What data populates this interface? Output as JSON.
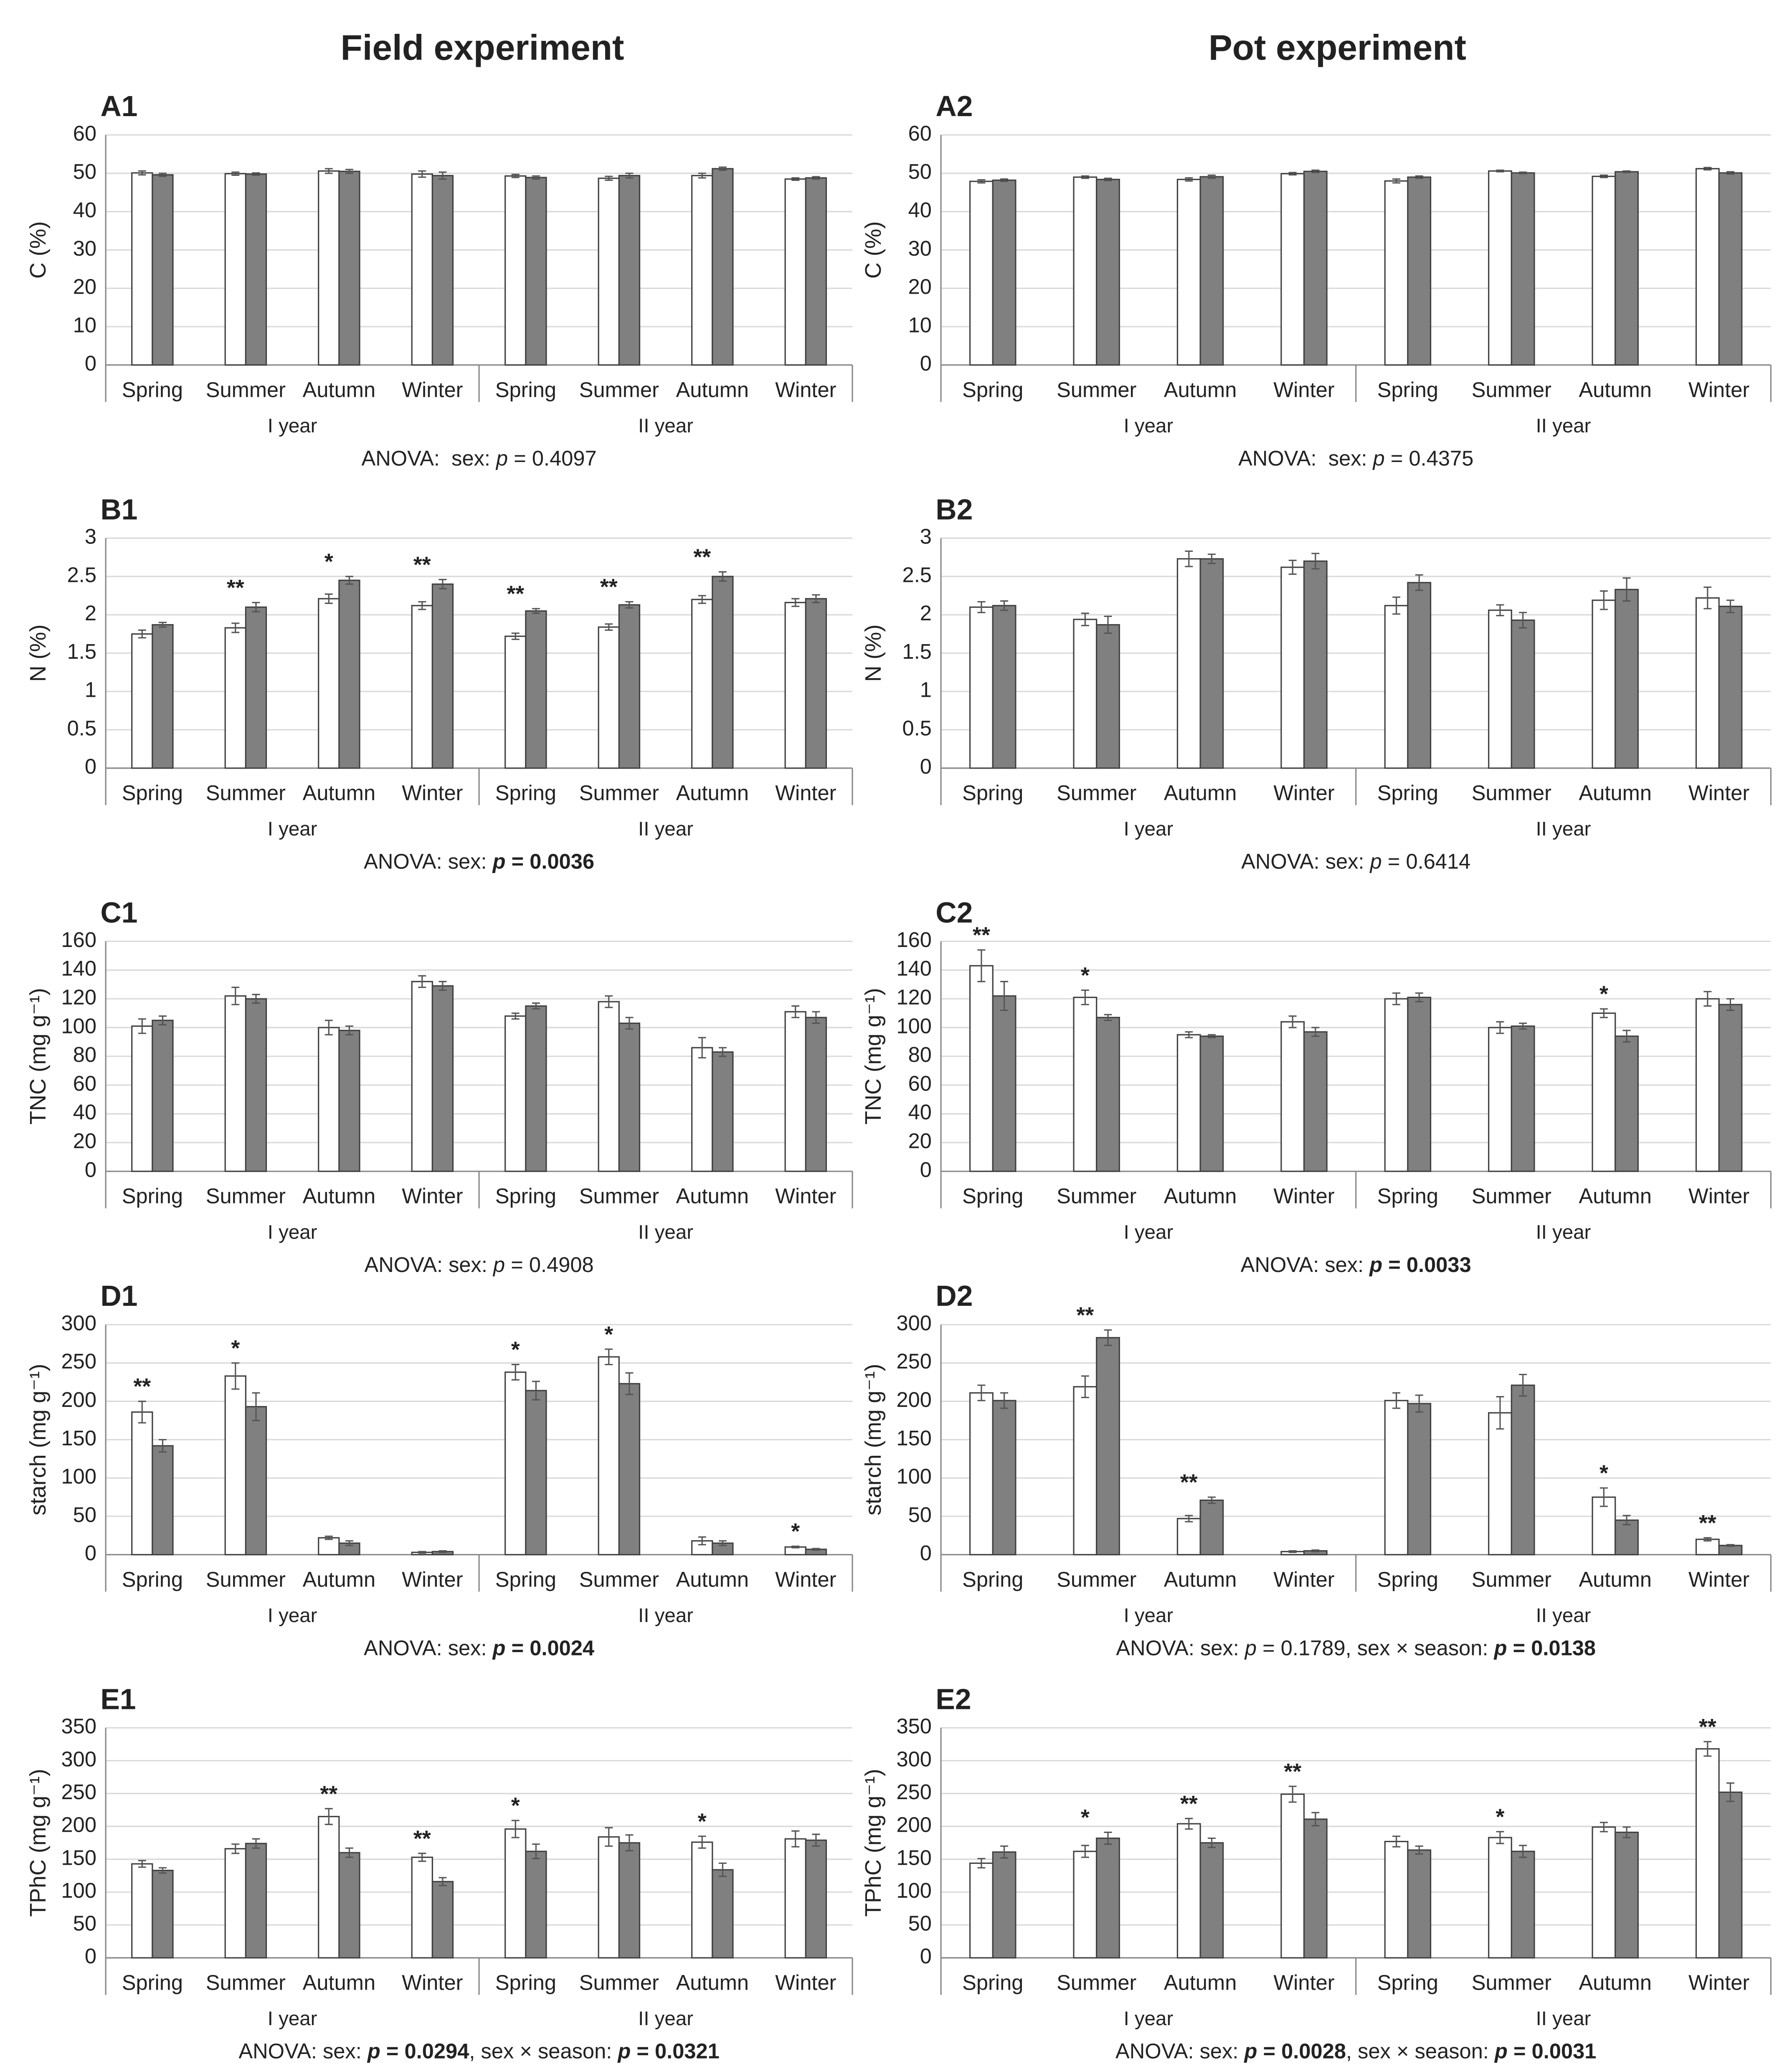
{
  "columns": [
    "Field experiment",
    "Pot experiment"
  ],
  "chart_data": [
    {
      "type": "bar",
      "label": "A1",
      "ylabel": "C (%)",
      "categories": [
        "Spring",
        "Summer",
        "Autumn",
        "Winter",
        "Spring",
        "Summer",
        "Autumn",
        "Winter"
      ],
      "groups": [
        "I year",
        "II year"
      ],
      "series": [
        {
          "color": "#ffffff",
          "values": [
            50.1,
            49.9,
            50.6,
            49.8,
            49.3,
            48.7,
            49.4,
            48.5
          ],
          "errors": [
            0.5,
            0.4,
            0.6,
            0.8,
            0.4,
            0.5,
            0.6,
            0.3
          ]
        },
        {
          "color": "#808080",
          "values": [
            49.6,
            49.8,
            50.5,
            49.4,
            48.9,
            49.4,
            51.2,
            48.8
          ],
          "errors": [
            0.4,
            0.3,
            0.5,
            0.9,
            0.4,
            0.6,
            0.4,
            0.3
          ]
        }
      ],
      "significance": [
        null,
        null,
        null,
        null,
        null,
        null,
        null,
        null
      ],
      "ylim": [
        0,
        60
      ],
      "yticks": [
        0,
        10,
        20,
        30,
        40,
        50,
        60
      ],
      "anova": [
        {
          "text": "ANOVA:  sex: "
        },
        {
          "text": "p",
          "italic": true
        },
        {
          "text": " = 0.4097"
        }
      ]
    },
    {
      "type": "bar",
      "label": "A2",
      "ylabel": "C (%)",
      "categories": [
        "Spring",
        "Summer",
        "Autumn",
        "Winter",
        "Spring",
        "Summer",
        "Autumn",
        "Winter"
      ],
      "groups": [
        "I year",
        "II year"
      ],
      "series": [
        {
          "color": "#ffffff",
          "values": [
            47.9,
            49.0,
            48.4,
            49.9,
            48.0,
            50.6,
            49.2,
            51.2
          ],
          "errors": [
            0.4,
            0.3,
            0.4,
            0.3,
            0.5,
            0.2,
            0.3,
            0.3
          ]
        },
        {
          "color": "#808080",
          "values": [
            48.2,
            48.4,
            49.1,
            50.5,
            49.0,
            50.1,
            50.4,
            50.1
          ],
          "errors": [
            0.3,
            0.3,
            0.4,
            0.3,
            0.3,
            0.2,
            0.2,
            0.3
          ]
        }
      ],
      "significance": [
        null,
        null,
        null,
        null,
        null,
        null,
        null,
        null
      ],
      "ylim": [
        0,
        60
      ],
      "yticks": [
        0,
        10,
        20,
        30,
        40,
        50,
        60
      ],
      "anova": [
        {
          "text": "ANOVA:  sex: "
        },
        {
          "text": "p",
          "italic": true
        },
        {
          "text": " = 0.4375"
        }
      ]
    },
    {
      "type": "bar",
      "label": "B1",
      "ylabel": "N (%)",
      "categories": [
        "Spring",
        "Summer",
        "Autumn",
        "Winter",
        "Spring",
        "Summer",
        "Autumn",
        "Winter"
      ],
      "groups": [
        "I year",
        "II year"
      ],
      "series": [
        {
          "color": "#ffffff",
          "values": [
            1.75,
            1.83,
            2.21,
            2.12,
            1.72,
            1.84,
            2.2,
            2.16
          ],
          "errors": [
            0.05,
            0.06,
            0.06,
            0.05,
            0.04,
            0.04,
            0.05,
            0.05
          ]
        },
        {
          "color": "#808080",
          "values": [
            1.87,
            2.1,
            2.45,
            2.4,
            2.05,
            2.13,
            2.5,
            2.21
          ],
          "errors": [
            0.03,
            0.06,
            0.05,
            0.06,
            0.03,
            0.04,
            0.06,
            0.05
          ]
        }
      ],
      "significance": [
        null,
        "**",
        "*",
        "**",
        "**",
        "**",
        "**",
        null
      ],
      "ylim": [
        0,
        3
      ],
      "yticks": [
        0,
        0.5,
        1,
        1.5,
        2,
        2.5,
        3
      ],
      "anova": [
        {
          "text": "ANOVA: sex: "
        },
        {
          "text": "p",
          "italic": true,
          "bold": true
        },
        {
          "text": " = 0.0036",
          "bold": true
        }
      ]
    },
    {
      "type": "bar",
      "label": "B2",
      "ylabel": "N (%)",
      "categories": [
        "Spring",
        "Summer",
        "Autumn",
        "Winter",
        "Spring",
        "Summer",
        "Autumn",
        "Winter"
      ],
      "groups": [
        "I year",
        "II year"
      ],
      "series": [
        {
          "color": "#ffffff",
          "values": [
            2.1,
            1.94,
            2.73,
            2.62,
            2.12,
            2.06,
            2.19,
            2.22
          ],
          "errors": [
            0.07,
            0.08,
            0.1,
            0.09,
            0.11,
            0.07,
            0.12,
            0.14
          ]
        },
        {
          "color": "#808080",
          "values": [
            2.12,
            1.87,
            2.73,
            2.7,
            2.42,
            1.93,
            2.33,
            2.11
          ],
          "errors": [
            0.06,
            0.11,
            0.06,
            0.1,
            0.1,
            0.1,
            0.15,
            0.08
          ]
        }
      ],
      "significance": [
        null,
        null,
        null,
        null,
        null,
        null,
        null,
        null
      ],
      "ylim": [
        0,
        3
      ],
      "yticks": [
        0,
        0.5,
        1,
        1.5,
        2,
        2.5,
        3
      ],
      "anova": [
        {
          "text": "ANOVA: sex: "
        },
        {
          "text": "p",
          "italic": true
        },
        {
          "text": " = 0.6414"
        }
      ]
    },
    {
      "type": "bar",
      "label": "C1",
      "ylabel": "TNC (mg g⁻¹)",
      "categories": [
        "Spring",
        "Summer",
        "Autumn",
        "Winter",
        "Spring",
        "Summer",
        "Autumn",
        "Winter"
      ],
      "groups": [
        "I year",
        "II year"
      ],
      "series": [
        {
          "color": "#ffffff",
          "values": [
            101,
            122,
            100,
            132,
            108,
            118,
            86,
            111
          ],
          "errors": [
            5,
            6,
            5,
            4,
            2,
            4,
            7,
            4
          ]
        },
        {
          "color": "#808080",
          "values": [
            105,
            120,
            98,
            129,
            115,
            103,
            83,
            107
          ],
          "errors": [
            3,
            3,
            3,
            3,
            2,
            4,
            3,
            4
          ]
        }
      ],
      "significance": [
        null,
        null,
        null,
        null,
        null,
        null,
        null,
        null
      ],
      "ylim": [
        0,
        160
      ],
      "yticks": [
        0,
        20,
        40,
        60,
        80,
        100,
        120,
        140,
        160
      ],
      "anova": [
        {
          "text": "ANOVA: sex: "
        },
        {
          "text": "p",
          "italic": true
        },
        {
          "text": " = 0.4908"
        }
      ]
    },
    {
      "type": "bar",
      "label": "C2",
      "ylabel": "TNC (mg g⁻¹)",
      "categories": [
        "Spring",
        "Summer",
        "Autumn",
        "Winter",
        "Spring",
        "Summer",
        "Autumn",
        "Winter"
      ],
      "groups": [
        "I year",
        "II year"
      ],
      "series": [
        {
          "color": "#ffffff",
          "values": [
            143,
            121,
            95,
            104,
            120,
            100,
            110,
            120
          ],
          "errors": [
            11,
            5,
            2,
            4,
            4,
            4,
            3,
            5
          ]
        },
        {
          "color": "#808080",
          "values": [
            122,
            107,
            94,
            97,
            121,
            101,
            94,
            116
          ],
          "errors": [
            10,
            2,
            1,
            3,
            3,
            2,
            4,
            4
          ]
        }
      ],
      "significance": [
        "**",
        "*",
        null,
        null,
        null,
        null,
        "*",
        null
      ],
      "ylim": [
        0,
        160
      ],
      "yticks": [
        0,
        20,
        40,
        60,
        80,
        100,
        120,
        140,
        160
      ],
      "anova": [
        {
          "text": "ANOVA: sex: "
        },
        {
          "text": "p",
          "italic": true,
          "bold": true
        },
        {
          "text": " = 0.0033",
          "bold": true
        }
      ]
    },
    {
      "type": "bar",
      "label": "D1",
      "ylabel": "starch (mg g⁻¹)",
      "categories": [
        "Spring",
        "Summer",
        "Autumn",
        "Winter",
        "Spring",
        "Summer",
        "Autumn",
        "Winter"
      ],
      "groups": [
        "I year",
        "II year"
      ],
      "series": [
        {
          "color": "#ffffff",
          "values": [
            186,
            233,
            22,
            3,
            238,
            258,
            18,
            10
          ],
          "errors": [
            14,
            17,
            2,
            1,
            10,
            10,
            5,
            1
          ]
        },
        {
          "color": "#808080",
          "values": [
            142,
            193,
            15,
            4,
            214,
            223,
            15,
            7
          ],
          "errors": [
            8,
            18,
            3,
            1,
            12,
            14,
            3,
            1
          ]
        }
      ],
      "significance": [
        "**",
        "*",
        null,
        null,
        "*",
        "*",
        null,
        "*"
      ],
      "ylim": [
        0,
        300
      ],
      "yticks": [
        0,
        50,
        100,
        150,
        200,
        250,
        300
      ],
      "anova": [
        {
          "text": "ANOVA: sex: "
        },
        {
          "text": "p",
          "italic": true,
          "bold": true
        },
        {
          "text": " = 0.0024",
          "bold": true
        }
      ]
    },
    {
      "type": "bar",
      "label": "D2",
      "ylabel": "starch (mg g⁻¹)",
      "categories": [
        "Spring",
        "Summer",
        "Autumn",
        "Winter",
        "Spring",
        "Summer",
        "Autumn",
        "Winter"
      ],
      "groups": [
        "I year",
        "II year"
      ],
      "series": [
        {
          "color": "#ffffff",
          "values": [
            211,
            219,
            47,
            4,
            201,
            185,
            75,
            20
          ],
          "errors": [
            10,
            14,
            4,
            1,
            10,
            21,
            12,
            2
          ]
        },
        {
          "color": "#808080",
          "values": [
            201,
            283,
            71,
            5,
            197,
            221,
            45,
            12
          ],
          "errors": [
            10,
            10,
            4,
            1,
            11,
            14,
            6,
            1
          ]
        }
      ],
      "significance": [
        null,
        "**",
        "**",
        null,
        null,
        null,
        "*",
        "**"
      ],
      "ylim": [
        0,
        300
      ],
      "yticks": [
        0,
        50,
        100,
        150,
        200,
        250,
        300
      ],
      "anova": [
        {
          "text": "ANOVA: sex: "
        },
        {
          "text": "p",
          "italic": true
        },
        {
          "text": " = 0.1789, sex × season: "
        },
        {
          "text": "p",
          "italic": true,
          "bold": true
        },
        {
          "text": " = 0.0138",
          "bold": true
        }
      ]
    },
    {
      "type": "bar",
      "label": "E1",
      "ylabel": "TPhC (mg g⁻¹)",
      "categories": [
        "Spring",
        "Summer",
        "Autumn",
        "Winter",
        "Spring",
        "Summer",
        "Autumn",
        "Winter"
      ],
      "groups": [
        "I year",
        "II year"
      ],
      "series": [
        {
          "color": "#ffffff",
          "values": [
            143,
            166,
            215,
            153,
            196,
            184,
            176,
            181
          ],
          "errors": [
            5,
            7,
            12,
            6,
            13,
            14,
            9,
            12
          ]
        },
        {
          "color": "#808080",
          "values": [
            133,
            174,
            160,
            116,
            162,
            175,
            134,
            179
          ],
          "errors": [
            4,
            7,
            7,
            6,
            11,
            12,
            10,
            9
          ]
        }
      ],
      "significance": [
        null,
        null,
        "**",
        "**",
        "*",
        null,
        "*",
        null
      ],
      "ylim": [
        0,
        350
      ],
      "yticks": [
        0,
        50,
        100,
        150,
        200,
        250,
        300,
        350
      ],
      "anova": [
        {
          "text": "ANOVA: sex: "
        },
        {
          "text": "p",
          "italic": true,
          "bold": true
        },
        {
          "text": " = 0.0294",
          "bold": true
        },
        {
          "text": ", sex × season: "
        },
        {
          "text": "p",
          "italic": true,
          "bold": true
        },
        {
          "text": " = 0.0321",
          "bold": true
        }
      ]
    },
    {
      "type": "bar",
      "label": "E2",
      "ylabel": "TPhC (mg g⁻¹)",
      "categories": [
        "Spring",
        "Summer",
        "Autumn",
        "Winter",
        "Spring",
        "Summer",
        "Autumn",
        "Winter"
      ],
      "groups": [
        "I year",
        "II year"
      ],
      "series": [
        {
          "color": "#ffffff",
          "values": [
            144,
            162,
            204,
            249,
            177,
            183,
            199,
            318
          ],
          "errors": [
            7,
            9,
            8,
            12,
            8,
            9,
            7,
            11
          ]
        },
        {
          "color": "#808080",
          "values": [
            161,
            182,
            175,
            211,
            164,
            162,
            191,
            252
          ],
          "errors": [
            9,
            9,
            7,
            10,
            6,
            9,
            8,
            14
          ]
        }
      ],
      "significance": [
        null,
        "*",
        "**",
        "**",
        null,
        "*",
        null,
        "**"
      ],
      "ylim": [
        0,
        350
      ],
      "yticks": [
        0,
        50,
        100,
        150,
        200,
        250,
        300,
        350
      ],
      "anova": [
        {
          "text": "ANOVA: sex: "
        },
        {
          "text": "p",
          "italic": true,
          "bold": true
        },
        {
          "text": " = 0.0028",
          "bold": true
        },
        {
          "text": ", sex × season: "
        },
        {
          "text": "p",
          "italic": true,
          "bold": true
        },
        {
          "text": " = 0.0031",
          "bold": true
        }
      ]
    }
  ]
}
